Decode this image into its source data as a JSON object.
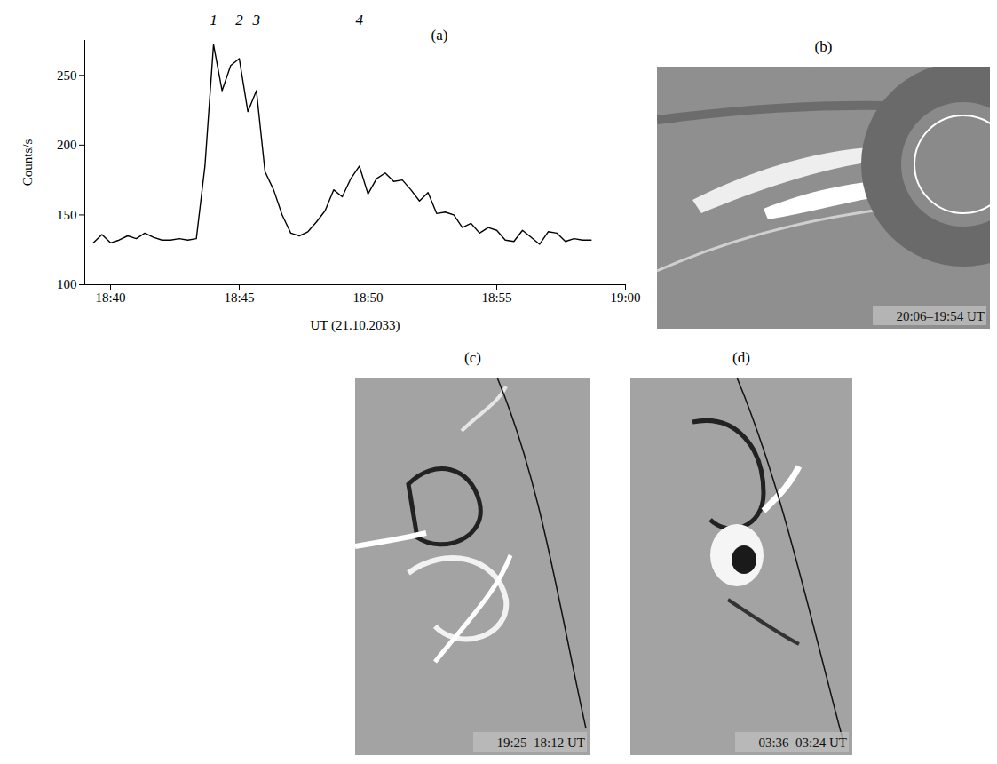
{
  "chart_data": {
    "type": "line",
    "title": "(a)",
    "x_label": "UT (21.10.2033)",
    "y_label": "Counts/s",
    "x": [
      "18:39:20",
      "18:39:40",
      "18:40:00",
      "18:40:20",
      "18:40:40",
      "18:41:00",
      "18:41:20",
      "18:41:40",
      "18:42:00",
      "18:42:20",
      "18:42:40",
      "18:43:00",
      "18:43:20",
      "18:43:40",
      "18:44:00",
      "18:44:20",
      "18:44:40",
      "18:45:00",
      "18:45:20",
      "18:45:40",
      "18:46:00",
      "18:46:20",
      "18:46:40",
      "18:47:00",
      "18:47:20",
      "18:47:40",
      "18:48:00",
      "18:48:20",
      "18:48:40",
      "18:49:00",
      "18:49:20",
      "18:49:40",
      "18:50:00",
      "18:50:20",
      "18:50:40",
      "18:51:00",
      "18:51:20",
      "18:51:40",
      "18:52:00",
      "18:52:20",
      "18:52:40",
      "18:53:00",
      "18:53:20",
      "18:53:40",
      "18:54:00",
      "18:54:20",
      "18:54:40",
      "18:55:00",
      "18:55:20",
      "18:55:40",
      "18:56:00",
      "18:56:20",
      "18:56:40",
      "18:57:00",
      "18:57:20",
      "18:57:40",
      "18:58:00",
      "18:58:20",
      "18:58:40"
    ],
    "values": [
      130,
      136,
      130,
      132,
      135,
      133,
      137,
      134,
      132,
      132,
      133,
      132,
      133,
      185,
      272,
      239,
      257,
      262,
      224,
      239,
      181,
      168,
      150,
      137,
      135,
      138,
      145,
      153,
      168,
      163,
      176,
      185,
      165,
      176,
      180,
      174,
      175,
      168,
      160,
      166,
      151,
      152,
      150,
      141,
      144,
      137,
      141,
      139,
      132,
      131,
      139,
      134,
      129,
      138,
      137,
      131,
      133,
      132,
      132
    ],
    "color": "#000000",
    "xlim": [
      "18:39:00",
      "19:00:00"
    ],
    "xticks": [
      {
        "value": "18:40:00",
        "label": "18:40"
      },
      {
        "value": "18:45:00",
        "label": "18:45"
      },
      {
        "value": "18:50:00",
        "label": "18:50"
      },
      {
        "value": "18:55:00",
        "label": "18:55"
      },
      {
        "value": "19:00:00",
        "label": "19:00"
      }
    ],
    "ylim": [
      100,
      275
    ],
    "yticks": [
      100,
      150,
      200,
      250
    ],
    "annotations": [
      {
        "text": "1",
        "x": "18:44:00"
      },
      {
        "text": "2",
        "x": "18:45:00"
      },
      {
        "text": "3",
        "x": "18:45:40"
      },
      {
        "text": "4",
        "x": "18:49:40"
      }
    ]
  },
  "images": [
    {
      "label": "(b)",
      "caption": "20:06–19:54 UT"
    },
    {
      "label": "(c)",
      "caption": "19:25–18:12 UT"
    },
    {
      "label": "(d)",
      "caption": "03:36–03:24 UT"
    }
  ]
}
